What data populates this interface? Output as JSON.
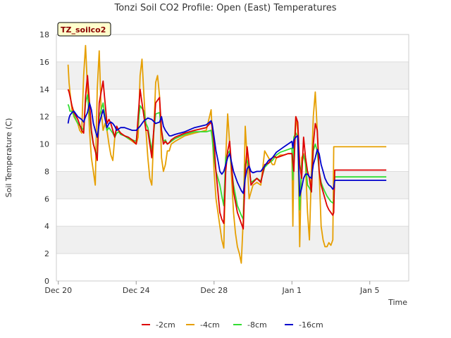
{
  "chart_data": {
    "type": "line",
    "title": "Tonzi Soil CO2 Profile: Open (East) Temperatures",
    "xlabel": "Time",
    "ylabel": "Soil Temperature (C)",
    "badge": "TZ_soilco2",
    "ylim": [
      0,
      18
    ],
    "xlim": [
      -0.1,
      18.0
    ],
    "grid": true,
    "legend_position": "bottom",
    "x_unit": "days from Dec 20",
    "yticks": [
      0,
      2,
      4,
      6,
      8,
      10,
      12,
      14,
      16,
      18
    ],
    "xticks": [
      {
        "x": 0,
        "label": "Dec 20"
      },
      {
        "x": 4,
        "label": "Dec 24"
      },
      {
        "x": 8,
        "label": "Dec 28"
      },
      {
        "x": 12,
        "label": "Jan 1"
      },
      {
        "x": 16,
        "label": "Jan 5"
      }
    ],
    "series": [
      {
        "name": "-2cm",
        "color": "#dd0000",
        "x": [
          0.5,
          0.55,
          0.6,
          0.7,
          0.8,
          1.0,
          1.2,
          1.3,
          1.4,
          1.5,
          1.6,
          1.7,
          1.8,
          1.9,
          2.0,
          2.1,
          2.3,
          2.5,
          2.6,
          2.7,
          2.8,
          2.9,
          3.0,
          3.1,
          3.2,
          3.4,
          3.6,
          3.8,
          4.0,
          4.2,
          4.3,
          4.35,
          4.4,
          4.5,
          4.6,
          4.8,
          5.0,
          5.2,
          5.3,
          5.4,
          5.5,
          5.6,
          5.7,
          5.8,
          6.0,
          6.5,
          7.0,
          7.6,
          7.85,
          7.9,
          8.0,
          8.1,
          8.2,
          8.3,
          8.4,
          8.5,
          8.6,
          8.7,
          8.8,
          9.0,
          9.2,
          9.4,
          9.5,
          9.6,
          9.7,
          9.8,
          9.9,
          10.0,
          10.2,
          10.4,
          10.6,
          10.8,
          11.0,
          11.1,
          11.2,
          11.4,
          11.6,
          11.8,
          12.0,
          12.1,
          12.2,
          12.3,
          12.4,
          12.5,
          12.6,
          12.7,
          12.8,
          12.9,
          13.0,
          13.1,
          13.2,
          13.3,
          13.4,
          13.5,
          13.6,
          13.7,
          13.8,
          13.9,
          14.0,
          14.1,
          14.15,
          14.2,
          14.5,
          15.0,
          15.5,
          16.0,
          16.5,
          16.85
        ],
        "y": [
          14.0,
          13.8,
          13.5,
          12.8,
          12.3,
          11.8,
          11.0,
          10.8,
          13.5,
          15.0,
          13.0,
          11.0,
          10.0,
          9.5,
          8.8,
          13.0,
          14.6,
          11.5,
          11.8,
          11.5,
          11.0,
          10.5,
          11.3,
          11.0,
          10.8,
          10.6,
          10.5,
          10.3,
          10.0,
          14.0,
          13.0,
          12.5,
          12.0,
          11.0,
          11.0,
          9.0,
          13.0,
          13.4,
          11.0,
          10.0,
          10.2,
          10.0,
          10.1,
          10.3,
          10.5,
          10.8,
          11.0,
          11.2,
          11.6,
          11.3,
          10.0,
          8.0,
          6.5,
          5.0,
          4.5,
          4.2,
          8.0,
          9.5,
          10.2,
          6.5,
          5.0,
          4.2,
          3.8,
          8.0,
          9.8,
          8.5,
          7.0,
          7.2,
          7.5,
          7.2,
          8.5,
          8.6,
          9.0,
          9.1,
          9.0,
          9.1,
          9.2,
          9.3,
          9.3,
          8.0,
          12.0,
          11.6,
          8.5,
          7.5,
          10.5,
          9.0,
          8.0,
          7.5,
          6.5,
          10.0,
          11.5,
          11.0,
          8.0,
          7.0,
          6.5,
          6.0,
          5.5,
          5.2,
          5.0,
          4.8,
          5.0,
          8.1,
          8.1,
          8.1,
          8.1,
          8.1,
          8.1,
          8.1
        ]
      },
      {
        "name": "-4cm",
        "color": "#e69f00",
        "x": [
          0.5,
          0.55,
          0.6,
          0.7,
          0.8,
          1.0,
          1.1,
          1.2,
          1.3,
          1.4,
          1.5,
          1.6,
          1.7,
          1.8,
          1.9,
          2.0,
          2.1,
          2.2,
          2.3,
          2.4,
          2.5,
          2.6,
          2.7,
          2.8,
          2.9,
          3.0,
          3.1,
          3.2,
          3.4,
          3.6,
          3.8,
          4.0,
          4.1,
          4.2,
          4.3,
          4.4,
          4.5,
          4.6,
          4.7,
          4.8,
          5.0,
          5.1,
          5.2,
          5.3,
          5.4,
          5.5,
          5.6,
          5.7,
          5.8,
          6.0,
          6.5,
          7.0,
          7.6,
          7.85,
          7.9,
          8.0,
          8.1,
          8.2,
          8.3,
          8.4,
          8.5,
          8.6,
          8.7,
          8.8,
          9.0,
          9.1,
          9.2,
          9.3,
          9.4,
          9.5,
          9.6,
          9.7,
          9.8,
          9.9,
          10.0,
          10.2,
          10.4,
          10.6,
          10.8,
          11.0,
          11.1,
          11.2,
          11.4,
          11.6,
          11.8,
          12.0,
          12.05,
          12.1,
          12.2,
          12.3,
          12.4,
          12.5,
          12.6,
          12.7,
          12.8,
          12.9,
          13.0,
          13.1,
          13.2,
          13.3,
          13.4,
          13.5,
          13.6,
          13.7,
          13.8,
          13.9,
          14.0,
          14.1,
          14.15,
          14.2,
          14.5,
          15.0,
          15.5,
          16.0,
          16.5,
          16.85
        ],
        "y": [
          15.8,
          14.5,
          13.8,
          12.5,
          12.0,
          11.5,
          11.0,
          10.8,
          15.0,
          17.2,
          14.0,
          11.0,
          9.0,
          8.0,
          7.0,
          14.0,
          16.8,
          12.5,
          11.0,
          11.5,
          11.0,
          10.0,
          9.2,
          8.8,
          10.5,
          11.2,
          11.0,
          10.8,
          10.6,
          10.4,
          10.2,
          10.0,
          10.5,
          15.0,
          16.2,
          13.5,
          11.0,
          9.0,
          7.5,
          7.0,
          14.5,
          15.0,
          13.5,
          9.0,
          8.0,
          8.5,
          9.5,
          9.5,
          10.0,
          10.2,
          10.6,
          10.8,
          11.0,
          12.5,
          11.0,
          8.0,
          6.0,
          5.0,
          4.0,
          3.0,
          2.4,
          9.0,
          12.2,
          10.0,
          5.0,
          3.5,
          2.5,
          2.0,
          1.3,
          4.5,
          11.3,
          9.0,
          6.0,
          6.5,
          7.0,
          7.2,
          7.0,
          9.5,
          9.0,
          8.5,
          8.5,
          9.0,
          9.2,
          9.2,
          9.3,
          9.3,
          4.0,
          9.5,
          12.0,
          11.0,
          2.5,
          9.0,
          9.3,
          8.5,
          5.0,
          3.0,
          8.0,
          12.0,
          13.8,
          11.0,
          8.0,
          4.0,
          3.0,
          2.5,
          2.5,
          2.8,
          2.6,
          3.0,
          9.8,
          9.8,
          9.8,
          9.8,
          9.8,
          9.8,
          9.8,
          9.8
        ]
      },
      {
        "name": "-8cm",
        "color": "#33dd33",
        "x": [
          0.5,
          0.55,
          0.6,
          0.7,
          0.8,
          1.0,
          1.2,
          1.3,
          1.4,
          1.5,
          1.6,
          1.7,
          1.8,
          1.9,
          2.0,
          2.1,
          2.3,
          2.5,
          2.6,
          2.7,
          2.8,
          2.9,
          3.0,
          3.1,
          3.2,
          3.4,
          3.6,
          3.8,
          4.0,
          4.2,
          4.3,
          4.4,
          4.5,
          4.6,
          4.8,
          5.0,
          5.2,
          5.3,
          5.4,
          5.5,
          5.6,
          5.7,
          5.8,
          6.0,
          6.5,
          7.0,
          7.6,
          7.85,
          7.9,
          8.0,
          8.1,
          8.2,
          8.3,
          8.4,
          8.5,
          8.6,
          8.7,
          8.8,
          9.0,
          9.2,
          9.4,
          9.5,
          9.6,
          9.7,
          9.8,
          9.9,
          10.0,
          10.2,
          10.4,
          10.6,
          10.8,
          11.0,
          11.1,
          11.2,
          11.4,
          11.6,
          11.8,
          12.0,
          12.05,
          12.1,
          12.2,
          12.3,
          12.4,
          12.5,
          12.6,
          12.7,
          12.8,
          12.9,
          13.0,
          13.1,
          13.2,
          13.3,
          13.4,
          13.5,
          13.6,
          13.7,
          13.8,
          13.9,
          14.0,
          14.1,
          14.15,
          14.2,
          14.5,
          15.0,
          15.5,
          16.0,
          16.5,
          16.85
        ],
        "y": [
          12.9,
          12.7,
          12.4,
          12.4,
          12.1,
          11.5,
          11.2,
          11.0,
          13.0,
          13.6,
          12.2,
          10.8,
          10.0,
          9.5,
          9.2,
          12.0,
          13.0,
          11.0,
          11.2,
          11.0,
          10.8,
          10.5,
          10.8,
          10.9,
          10.7,
          10.6,
          10.4,
          10.3,
          10.2,
          12.8,
          12.6,
          12.4,
          11.5,
          11.2,
          9.5,
          12.2,
          12.3,
          11.0,
          10.2,
          10.3,
          10.0,
          10.1,
          10.2,
          10.4,
          10.7,
          10.9,
          10.9,
          11.0,
          10.5,
          9.0,
          8.0,
          7.5,
          7.0,
          6.2,
          5.5,
          9.0,
          9.3,
          9.5,
          7.0,
          5.5,
          4.8,
          4.5,
          8.5,
          8.8,
          8.2,
          7.2,
          7.3,
          7.5,
          7.3,
          8.3,
          8.6,
          8.8,
          9.0,
          9.2,
          9.4,
          9.5,
          9.6,
          9.7,
          7.4,
          10.5,
          10.8,
          10.5,
          5.2,
          8.5,
          9.2,
          8.6,
          7.0,
          6.8,
          6.5,
          9.5,
          10.0,
          9.5,
          8.0,
          7.2,
          6.8,
          6.5,
          6.2,
          6.0,
          5.8,
          5.7,
          5.8,
          7.6,
          7.6,
          7.6,
          7.6,
          7.6,
          7.6,
          7.6
        ]
      },
      {
        "name": "-16cm",
        "color": "#0000cc",
        "x": [
          0.5,
          0.55,
          0.6,
          0.7,
          0.8,
          1.0,
          1.2,
          1.3,
          1.4,
          1.5,
          1.6,
          1.7,
          1.8,
          1.9,
          2.0,
          2.1,
          2.3,
          2.5,
          2.6,
          2.7,
          2.8,
          2.9,
          3.0,
          3.1,
          3.2,
          3.4,
          3.6,
          3.8,
          4.0,
          4.2,
          4.3,
          4.4,
          4.5,
          4.6,
          4.8,
          5.0,
          5.2,
          5.3,
          5.4,
          5.5,
          5.6,
          5.7,
          5.8,
          6.0,
          6.5,
          7.0,
          7.6,
          7.85,
          7.9,
          8.0,
          8.1,
          8.2,
          8.3,
          8.4,
          8.5,
          8.6,
          8.7,
          8.8,
          9.0,
          9.2,
          9.4,
          9.5,
          9.6,
          9.7,
          9.8,
          9.9,
          10.0,
          10.2,
          10.4,
          10.6,
          10.8,
          11.0,
          11.1,
          11.2,
          11.4,
          11.6,
          11.8,
          12.0,
          12.05,
          12.1,
          12.2,
          12.3,
          12.4,
          12.5,
          12.6,
          12.7,
          12.8,
          12.9,
          13.0,
          13.1,
          13.2,
          13.3,
          13.4,
          13.5,
          13.6,
          13.7,
          13.8,
          13.9,
          14.0,
          14.1,
          14.15,
          14.2,
          14.5,
          15.0,
          15.5,
          16.0,
          16.5,
          16.85
        ],
        "y": [
          11.5,
          11.9,
          12.1,
          12.3,
          12.4,
          12.0,
          11.8,
          11.6,
          12.0,
          12.3,
          13.0,
          12.5,
          11.5,
          11.0,
          10.5,
          11.5,
          12.5,
          11.2,
          11.5,
          11.6,
          11.5,
          11.3,
          11.0,
          11.1,
          11.2,
          11.2,
          11.1,
          11.0,
          11.0,
          11.3,
          11.5,
          11.7,
          11.8,
          11.9,
          11.8,
          11.5,
          11.6,
          12.0,
          11.3,
          11.0,
          10.8,
          10.6,
          10.6,
          10.7,
          10.9,
          11.2,
          11.4,
          11.7,
          11.5,
          10.5,
          9.5,
          8.8,
          8.0,
          7.8,
          8.0,
          8.5,
          9.0,
          9.3,
          8.0,
          7.2,
          6.6,
          6.4,
          7.5,
          8.2,
          8.4,
          8.0,
          7.9,
          8.0,
          8.0,
          8.4,
          8.8,
          9.0,
          9.2,
          9.4,
          9.6,
          9.8,
          10.0,
          10.2,
          9.7,
          10.3,
          10.5,
          10.6,
          6.2,
          6.8,
          7.5,
          7.8,
          7.8,
          7.6,
          7.5,
          8.5,
          9.0,
          9.6,
          9.3,
          8.5,
          8.0,
          7.5,
          7.2,
          7.0,
          6.9,
          6.7,
          6.8,
          7.35,
          7.35,
          7.35,
          7.35,
          7.35,
          7.35,
          7.35
        ]
      }
    ]
  }
}
